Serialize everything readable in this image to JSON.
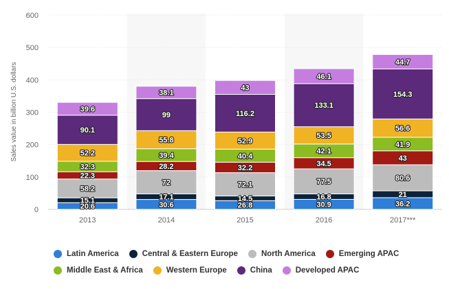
{
  "chart_data": {
    "type": "bar",
    "stacked": true,
    "categories": [
      "2013",
      "2014",
      "2015",
      "2016",
      "2017***"
    ],
    "ylabel": "Sales value in billion U.S. dollars",
    "ylim": [
      0,
      600
    ],
    "yticks": [
      "0",
      "100",
      "200",
      "300",
      "400",
      "500",
      "600"
    ],
    "grid": true,
    "legend_position": "bottom",
    "series": [
      {
        "name": "Latin America",
        "color": "#2f7ed8",
        "values": [
          20.6,
          30.6,
          26.8,
          30.9,
          36.2
        ],
        "labels": [
          "20.6",
          "30.6",
          "26.8",
          "30.9",
          "36.2"
        ]
      },
      {
        "name": "Central & Eastern Europe",
        "color": "#0d233a",
        "values": [
          15.1,
          17.1,
          14.5,
          16.8,
          21
        ],
        "labels": [
          "15.1",
          "17.1",
          "14.5",
          "16.8",
          "21"
        ]
      },
      {
        "name": "North America",
        "color": "#bcbcbc",
        "values": [
          58.2,
          72,
          72.1,
          77.5,
          80.6
        ],
        "labels": [
          "58.2",
          "72",
          "72.1",
          "77.5",
          "80.6"
        ]
      },
      {
        "name": "Emerging APAC",
        "color": "#a31a12",
        "values": [
          22.3,
          28.2,
          32.2,
          34.5,
          43
        ],
        "labels": [
          "22.3",
          "28.2",
          "32.2",
          "34.5",
          "43"
        ]
      },
      {
        "name": "Middle East & Africa",
        "color": "#8bbc21",
        "values": [
          32.3,
          39.4,
          40.4,
          42.1,
          41.9
        ],
        "labels": [
          "32.3",
          "39.4",
          "40.4",
          "42.1",
          "41.9"
        ]
      },
      {
        "name": "Western Europe",
        "color": "#f0b323",
        "values": [
          52.2,
          55.8,
          52.9,
          53.5,
          56.6
        ],
        "labels": [
          "52.2",
          "55.8",
          "52.9",
          "53.5",
          "56.6"
        ]
      },
      {
        "name": "China",
        "color": "#5b2a7a",
        "values": [
          90.1,
          99,
          116.2,
          133.1,
          154.3
        ],
        "labels": [
          "90.1",
          "99",
          "116.2",
          "133.1",
          "154.3"
        ]
      },
      {
        "name": "Developed APAC",
        "color": "#c57ee0",
        "values": [
          39.6,
          38.1,
          43,
          46.1,
          44.7
        ],
        "labels": [
          "39.6",
          "38.1",
          "43",
          "46.1",
          "44.7"
        ]
      }
    ]
  }
}
